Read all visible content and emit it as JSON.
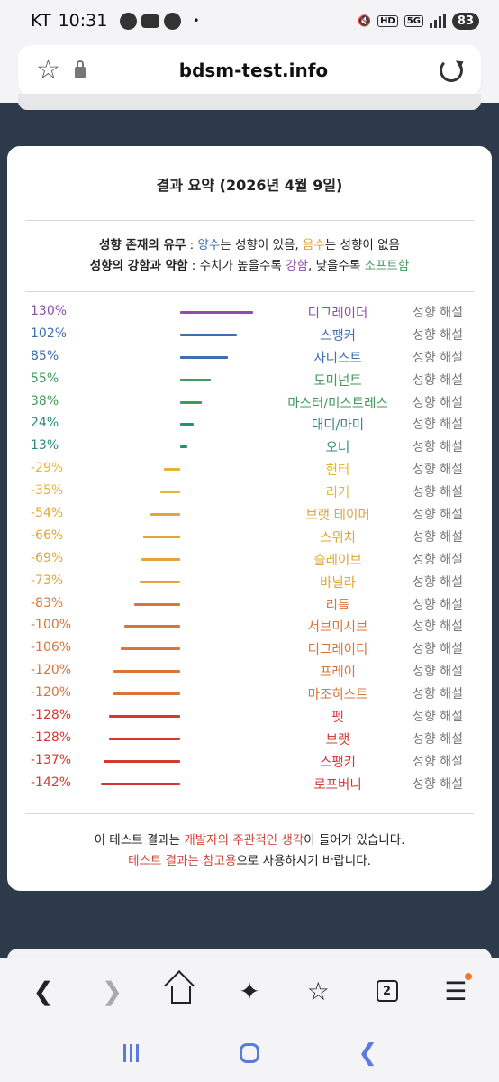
{
  "status_bar": {
    "carrier": "KT",
    "time": "10:31",
    "dot": "•",
    "hd_label": "HD",
    "net_label": "5G",
    "battery": "83"
  },
  "browser": {
    "url": "bdsm-test.info",
    "tab_count": "2"
  },
  "card": {
    "title": "결과 요약 (2026년 4월 9일)",
    "legend": {
      "line1": {
        "label": "성향 존재의 유무",
        "sep": " : ",
        "positive": "양수",
        "positive_text": "는 성향이 있음, ",
        "negative": "음수",
        "negative_text": "는 성향이 없음"
      },
      "line2": {
        "label": "성향의 강함과 약함",
        "sep": " : 수치가 높을수록 ",
        "strong": "강함",
        "mid": ", 낮을수록 ",
        "soft": "소프트함"
      }
    },
    "desc_label": "성향 해설",
    "rows": [
      {
        "pct": "130%",
        "value": 130,
        "name": "디그레이더",
        "color": "#8e4fa8"
      },
      {
        "pct": "102%",
        "value": 102,
        "name": "스팽커",
        "color": "#3e6fb0"
      },
      {
        "pct": "85%",
        "value": 85,
        "name": "사디스트",
        "color": "#3e6fb0"
      },
      {
        "pct": "55%",
        "value": 55,
        "name": "도미넌트",
        "color": "#3f9a5c"
      },
      {
        "pct": "38%",
        "value": 38,
        "name": "마스터/미스트레스",
        "color": "#3f9a5c"
      },
      {
        "pct": "24%",
        "value": 24,
        "name": "대디/마미",
        "color": "#2f8a78"
      },
      {
        "pct": "13%",
        "value": 13,
        "name": "오너",
        "color": "#2f8a78"
      },
      {
        "pct": "-29%",
        "value": -29,
        "name": "헌터",
        "color": "#e6b530"
      },
      {
        "pct": "-35%",
        "value": -35,
        "name": "리거",
        "color": "#e6b530"
      },
      {
        "pct": "-54%",
        "value": -54,
        "name": "브랫 테이머",
        "color": "#e0a637"
      },
      {
        "pct": "-66%",
        "value": -66,
        "name": "스위치",
        "color": "#e0a637"
      },
      {
        "pct": "-69%",
        "value": -69,
        "name": "슬레이브",
        "color": "#e0a637"
      },
      {
        "pct": "-73%",
        "value": -73,
        "name": "바닐라",
        "color": "#e0a637"
      },
      {
        "pct": "-83%",
        "value": -83,
        "name": "리틀",
        "color": "#d9743a"
      },
      {
        "pct": "-100%",
        "value": -100,
        "name": "서브미시브",
        "color": "#d9743a"
      },
      {
        "pct": "-106%",
        "value": -106,
        "name": "디그레이디",
        "color": "#d9743a"
      },
      {
        "pct": "-120%",
        "value": -120,
        "name": "프레이",
        "color": "#d9743a"
      },
      {
        "pct": "-120%",
        "value": -120,
        "name": "마조히스트",
        "color": "#d9743a"
      },
      {
        "pct": "-128%",
        "value": -128,
        "name": "펫",
        "color": "#cf3b32"
      },
      {
        "pct": "-128%",
        "value": -128,
        "name": "브랫",
        "color": "#cf3b32"
      },
      {
        "pct": "-137%",
        "value": -137,
        "name": "스팽키",
        "color": "#cf3b32"
      },
      {
        "pct": "-142%",
        "value": -142,
        "name": "로프버니",
        "color": "#cf3b32"
      }
    ],
    "note": {
      "line1_a": "이 테스트 결과는 ",
      "line1_b": "개발자의 주관적인 생각",
      "line1_c": "이 들어가 있습니다.",
      "line2_a": "테스트 결과는 참고용",
      "line2_b": "으로 사용하시기 바랍니다."
    }
  },
  "colors": {
    "positive": "#3e6fb0",
    "negative": "#d0473a",
    "strong": "#8e4fa8",
    "soft": "#3f9a5c",
    "page_bg": "#2c3a4a"
  }
}
